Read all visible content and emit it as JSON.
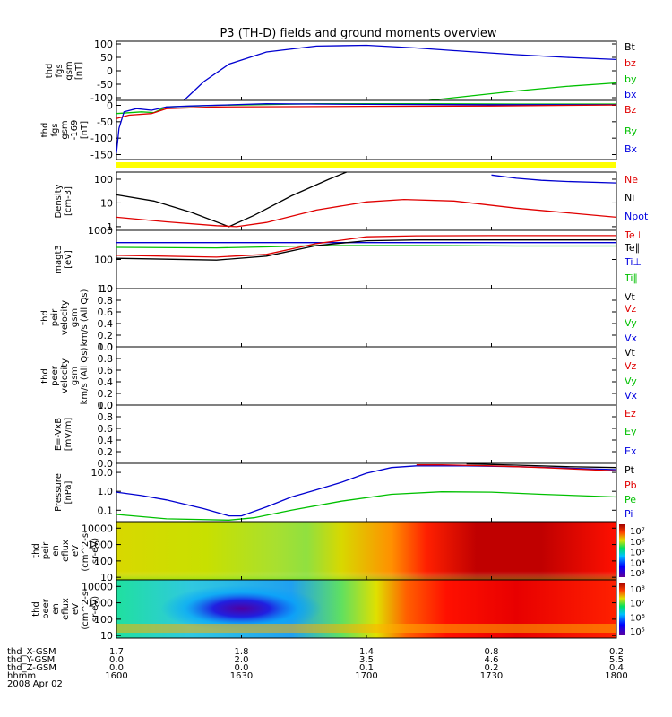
{
  "chart_data": {
    "type": "line",
    "title": "P3 (TH-D) fields and ground moments overview",
    "x_axis": {
      "row_labels": [
        "thd_X-GSM",
        "thd_Y-GSM",
        "thd_Z-GSM",
        "hhmm",
        "2008 Apr 02"
      ],
      "ticks": [
        {
          "x": "1.7",
          "y": "0.0",
          "z": "0.0",
          "hhmm": "1600"
        },
        {
          "x": "1.8",
          "y": "2.0",
          "z": "0.0",
          "hhmm": "1630"
        },
        {
          "x": "1.4",
          "y": "3.5",
          "z": "0.1",
          "hhmm": "1700"
        },
        {
          "x": "0.8",
          "y": "4.6",
          "z": "0.2",
          "hhmm": "1730"
        },
        {
          "x": "0.2",
          "y": "5.5",
          "z": "0.4",
          "hhmm": "1800"
        }
      ]
    },
    "panels": [
      {
        "ylabel": [
          "thd",
          "fgs",
          "gsm",
          "[nT]"
        ],
        "yticks": [
          "100",
          "50",
          "0",
          "-50",
          "-100"
        ],
        "legend": [
          {
            "text": "Bt",
            "color": "#000000"
          },
          {
            "text": "bz",
            "color": "#e00000"
          },
          {
            "text": "by",
            "color": "#00c000"
          },
          {
            "text": "bx",
            "color": "#0000e0"
          }
        ],
        "series": [
          {
            "name": "Bt",
            "color": "#0000d0",
            "points": [
              [
                1627,
                -110
              ],
              [
                1635,
                -40
              ],
              [
                1645,
                25
              ],
              [
                1660,
                70
              ],
              [
                1680,
                92
              ],
              [
                1700,
                95
              ],
              [
                1720,
                85
              ],
              [
                1740,
                72
              ],
              [
                1760,
                60
              ],
              [
                1780,
                50
              ],
              [
                1800,
                42
              ]
            ]
          },
          {
            "name": "by",
            "color": "#00c000",
            "points": [
              [
                1725,
                -110
              ],
              [
                1740,
                -95
              ],
              [
                1760,
                -75
              ],
              [
                1780,
                -58
              ],
              [
                1800,
                -45
              ]
            ]
          }
        ]
      },
      {
        "ylabel": [
          "thd",
          "fgs",
          "gsm",
          "-169",
          "[nT]"
        ],
        "yticks": [
          "0",
          "-50",
          "-100",
          "-150"
        ],
        "legend": [
          {
            "text": "Bz",
            "color": "#e00000"
          },
          {
            "text": "By",
            "color": "#00c000"
          },
          {
            "text": "Bx",
            "color": "#0000e0"
          }
        ],
        "series": [
          {
            "name": "By",
            "color": "#00c000",
            "points": [
              [
                1600,
                -25
              ],
              [
                1610,
                -20
              ],
              [
                1615,
                -22
              ],
              [
                1620,
                -5
              ],
              [
                1640,
                0
              ],
              [
                1680,
                5
              ],
              [
                1720,
                5
              ],
              [
                1760,
                4
              ],
              [
                1800,
                4
              ]
            ]
          },
          {
            "name": "Bx",
            "color": "#0000d0",
            "points": [
              [
                1600,
                -145
              ],
              [
                1601,
                -70
              ],
              [
                1603,
                -20
              ],
              [
                1608,
                -10
              ],
              [
                1614,
                -15
              ],
              [
                1620,
                -5
              ],
              [
                1630,
                -2
              ],
              [
                1660,
                5
              ],
              [
                1700,
                3
              ],
              [
                1750,
                2
              ],
              [
                1800,
                2
              ]
            ]
          },
          {
            "name": "Bz",
            "color": "#e00000",
            "points": [
              [
                1600,
                -40
              ],
              [
                1605,
                -30
              ],
              [
                1614,
                -25
              ],
              [
                1620,
                -10
              ],
              [
                1640,
                -5
              ],
              [
                1700,
                -3
              ],
              [
                1750,
                -2
              ],
              [
                1800,
                1
              ]
            ]
          }
        ]
      },
      {
        "ylabel": [
          "Density",
          "[cm-3]"
        ],
        "yticks": [
          "100",
          "10",
          "1"
        ],
        "legend": [
          {
            "text": "Ne",
            "color": "#e00000"
          },
          {
            "text": "Ni",
            "color": "#000000"
          },
          {
            "text": "Npot",
            "color": "#0000e0"
          }
        ],
        "series": [
          {
            "name": "Ni",
            "color": "#000000",
            "points": [
              [
                1600,
                22
              ],
              [
                1615,
                12
              ],
              [
                1630,
                4
              ],
              [
                1645,
                1
              ],
              [
                1655,
                3
              ],
              [
                1670,
                20
              ],
              [
                1685,
                100
              ],
              [
                1692,
                200
              ]
            ]
          },
          {
            "name": "Ne",
            "color": "#e00000",
            "points": [
              [
                1600,
                2.5
              ],
              [
                1620,
                1.6
              ],
              [
                1640,
                1.1
              ],
              [
                1648,
                1
              ],
              [
                1660,
                1.5
              ],
              [
                1680,
                5
              ],
              [
                1700,
                11
              ],
              [
                1715,
                14
              ],
              [
                1735,
                12
              ],
              [
                1760,
                6
              ],
              [
                1800,
                2.5
              ]
            ]
          },
          {
            "name": "Npot",
            "color": "#0000d0",
            "points": [
              [
                1750,
                150
              ],
              [
                1760,
                110
              ],
              [
                1770,
                90
              ],
              [
                1780,
                80
              ],
              [
                1800,
                70
              ]
            ]
          }
        ]
      },
      {
        "ylabel": [
          "magt3",
          "[eV]"
        ],
        "yticks": [
          "1000",
          "100",
          "10"
        ],
        "legend": [
          {
            "text": "Te⊥",
            "color": "#e00000"
          },
          {
            "text": "Te∥",
            "color": "#000000"
          },
          {
            "text": "Ti⊥",
            "color": "#0000e0"
          },
          {
            "text": "Ti∥",
            "color": "#00c000"
          }
        ],
        "series": [
          {
            "name": "Ti⊥",
            "color": "#0000d0",
            "points": [
              [
                1600,
                380
              ],
              [
                1650,
                380
              ],
              [
                1700,
                380
              ],
              [
                1750,
                380
              ],
              [
                1800,
                380
              ]
            ]
          },
          {
            "name": "Ti∥",
            "color": "#00c000",
            "points": [
              [
                1600,
                260
              ],
              [
                1640,
                250
              ],
              [
                1660,
                270
              ],
              [
                1680,
                300
              ],
              [
                1720,
                300
              ],
              [
                1760,
                290
              ],
              [
                1800,
                290
              ]
            ]
          },
          {
            "name": "Te⊥",
            "color": "#e00000",
            "points": [
              [
                1600,
                140
              ],
              [
                1640,
                120
              ],
              [
                1660,
                150
              ],
              [
                1680,
                350
              ],
              [
                1700,
                600
              ],
              [
                1720,
                650
              ],
              [
                1750,
                660
              ],
              [
                1800,
                660
              ]
            ]
          },
          {
            "name": "Te∥",
            "color": "#000000",
            "points": [
              [
                1600,
                110
              ],
              [
                1640,
                95
              ],
              [
                1660,
                130
              ],
              [
                1680,
                300
              ],
              [
                1700,
                440
              ],
              [
                1720,
                470
              ],
              [
                1750,
                470
              ],
              [
                1800,
                470
              ]
            ]
          }
        ]
      },
      {
        "ylabel": [
          "thd",
          "peir",
          "velocity",
          "gsm",
          "km/s (All Qs)"
        ],
        "yticks": [
          "1.0",
          "0.8",
          "0.6",
          "0.4",
          "0.2",
          "0.0"
        ],
        "legend": [
          {
            "text": "Vt",
            "color": "#000000"
          },
          {
            "text": "Vz",
            "color": "#e00000"
          },
          {
            "text": "Vy",
            "color": "#00c000"
          },
          {
            "text": "Vx",
            "color": "#0000e0"
          }
        ],
        "series": []
      },
      {
        "ylabel": [
          "thd",
          "peer",
          "velocity",
          "gsm",
          "km/s (All Qs)"
        ],
        "yticks": [
          "1.0",
          "0.8",
          "0.6",
          "0.4",
          "0.2",
          "0.0"
        ],
        "legend": [
          {
            "text": "Vt",
            "color": "#000000"
          },
          {
            "text": "Vz",
            "color": "#e00000"
          },
          {
            "text": "Vy",
            "color": "#00c000"
          },
          {
            "text": "Vx",
            "color": "#0000e0"
          }
        ],
        "series": []
      },
      {
        "ylabel": [
          "E=-VxB",
          "[mV/m]"
        ],
        "yticks": [
          "1.0",
          "0.8",
          "0.6",
          "0.4",
          "0.2",
          "0.0"
        ],
        "legend": [
          {
            "text": "Ez",
            "color": "#e00000"
          },
          {
            "text": "Ey",
            "color": "#00c000"
          },
          {
            "text": "Ex",
            "color": "#0000e0"
          }
        ],
        "series": []
      },
      {
        "ylabel": [
          "Pressure",
          "[nPa]"
        ],
        "yticks": [
          "10.0",
          "1.0",
          "0.1"
        ],
        "legend": [
          {
            "text": "Pt",
            "color": "#000000"
          },
          {
            "text": "Pb",
            "color": "#e00000"
          },
          {
            "text": "Pe",
            "color": "#00c000"
          },
          {
            "text": "Pi",
            "color": "#0000e0"
          }
        ],
        "series": [
          {
            "name": "Pi",
            "color": "#0000d0",
            "points": [
              [
                1600,
                0.9
              ],
              [
                1610,
                0.6
              ],
              [
                1620,
                0.35
              ],
              [
                1635,
                0.12
              ],
              [
                1645,
                0.05
              ],
              [
                1650,
                0.05
              ],
              [
                1660,
                0.15
              ],
              [
                1670,
                0.5
              ],
              [
                1680,
                1.2
              ],
              [
                1690,
                3
              ],
              [
                1700,
                9
              ],
              [
                1710,
                18
              ],
              [
                1720,
                22
              ],
              [
                1740,
                22
              ],
              [
                1760,
                20
              ],
              [
                1800,
                14
              ]
            ]
          },
          {
            "name": "Pe",
            "color": "#00c000",
            "points": [
              [
                1600,
                0.06
              ],
              [
                1620,
                0.035
              ],
              [
                1645,
                0.03
              ],
              [
                1655,
                0.04
              ],
              [
                1670,
                0.1
              ],
              [
                1690,
                0.3
              ],
              [
                1710,
                0.7
              ],
              [
                1730,
                0.95
              ],
              [
                1750,
                0.9
              ],
              [
                1770,
                0.7
              ],
              [
                1800,
                0.5
              ]
            ]
          },
          {
            "name": "Pb",
            "color": "#e00000",
            "points": [
              [
                1720,
                25
              ],
              [
                1730,
                25
              ],
              [
                1750,
                22
              ],
              [
                1770,
                18
              ],
              [
                1800,
                12
              ]
            ]
          },
          {
            "name": "Pt",
            "color": "#000000",
            "points": [
              [
                1740,
                28
              ],
              [
                1760,
                24
              ],
              [
                1780,
                20
              ],
              [
                1800,
                18
              ]
            ]
          }
        ]
      },
      {
        "ylabel": [
          "thd",
          "peir",
          "en",
          "eflux",
          "eV",
          "(cm^2-s-",
          "sr-eV)"
        ],
        "yticks": [
          "10000",
          "1000",
          "100",
          "10"
        ],
        "colorbar": [
          "10⁷",
          "10⁶",
          "10⁵",
          "10⁴",
          "10³"
        ],
        "heatmap": "ion"
      },
      {
        "ylabel": [
          "thd",
          "peer",
          "en",
          "eflux",
          "eV",
          "(cm^2-s-",
          "sr-eV)"
        ],
        "yticks": [
          "10000",
          "1000",
          "100",
          "10"
        ],
        "colorbar": [
          "10⁸",
          "10⁷",
          "10⁶",
          "10⁵"
        ],
        "heatmap": "electron"
      }
    ],
    "status_bar": {
      "color": "#ffff00"
    }
  }
}
